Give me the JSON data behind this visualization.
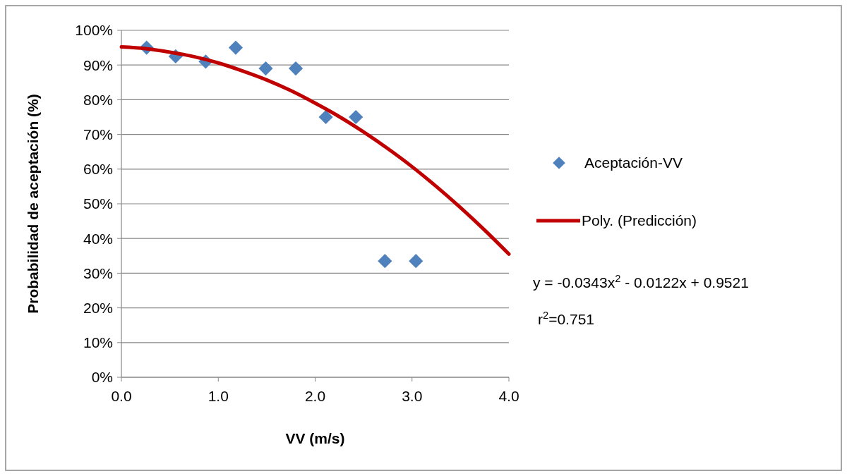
{
  "chart_data": {
    "type": "scatter",
    "xlabel": "VV (m/s)",
    "ylabel": "Probabilidad de aceptación (%)",
    "xlim": [
      0,
      4
    ],
    "xticks": [
      {
        "value": 0,
        "label": "0.0"
      },
      {
        "value": 1,
        "label": "1.0"
      },
      {
        "value": 2,
        "label": "2.0"
      },
      {
        "value": 3,
        "label": "3.0"
      },
      {
        "value": 4,
        "label": "4.0"
      }
    ],
    "ylim": [
      0,
      100
    ],
    "yticks": [
      {
        "value": 0,
        "label": "0%"
      },
      {
        "value": 10,
        "label": "10%"
      },
      {
        "value": 20,
        "label": "20%"
      },
      {
        "value": 30,
        "label": "30%"
      },
      {
        "value": 40,
        "label": "40%"
      },
      {
        "value": 50,
        "label": "50%"
      },
      {
        "value": 60,
        "label": "60%"
      },
      {
        "value": 70,
        "label": "70%"
      },
      {
        "value": 80,
        "label": "80%"
      },
      {
        "value": 90,
        "label": "90%"
      },
      {
        "value": 100,
        "label": "100%"
      }
    ],
    "grid": "y",
    "legend": "right",
    "series": [
      {
        "name": "Aceptación-VV",
        "marker": "diamond",
        "color": "#4f81bd",
        "x": [
          0.26,
          0.56,
          0.87,
          1.18,
          1.49,
          1.8,
          2.11,
          2.42,
          2.72,
          3.04
        ],
        "values": [
          95,
          92.5,
          91,
          95,
          89,
          89,
          75,
          75,
          33.5,
          33.5
        ]
      },
      {
        "name": "Poly. (Predicción)",
        "type": "line",
        "color": "#c00000",
        "marker": "none",
        "line_style": "solid",
        "x": [
          0,
          0.25,
          0.5,
          0.75,
          1,
          1.25,
          1.5,
          1.75,
          2,
          2.25,
          2.5,
          2.75,
          3,
          3.25,
          3.5,
          3.75,
          4
        ],
        "values": [
          95.2,
          94.7,
          93.7,
          92.4,
          90.6,
          88.3,
          85.7,
          82.6,
          79,
          75.1,
          70.7,
          65.9,
          60.7,
          55,
          48.9,
          42.4,
          35.5
        ]
      }
    ],
    "annotations": [
      "y = -0.0343x$^{2}$ - 0.0122x + 0.9521",
      "r$^{2}$=0.751"
    ]
  }
}
